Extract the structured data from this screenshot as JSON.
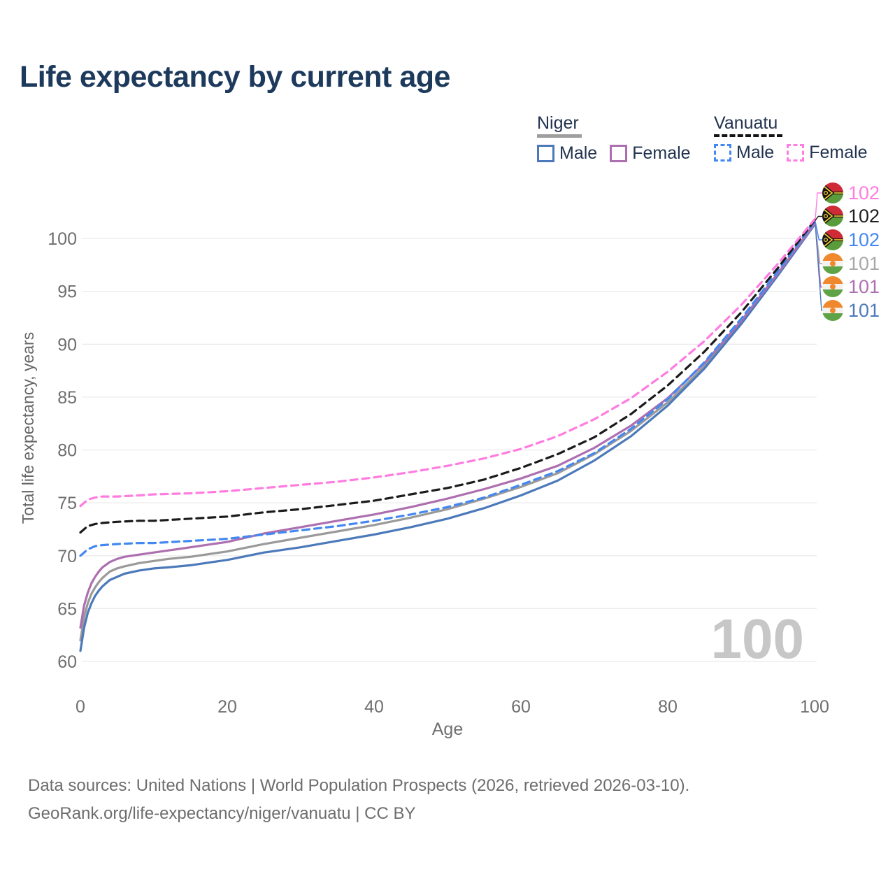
{
  "title": "Life expectancy by current age",
  "legend": {
    "groups": [
      {
        "name": "Niger",
        "line_style": "solid",
        "line_color": "#9e9e9e",
        "items": [
          {
            "label": "Male",
            "color": "#4c79ba",
            "dash": false
          },
          {
            "label": "Female",
            "color": "#ad6fb0",
            "dash": false
          }
        ]
      },
      {
        "name": "Vanuatu",
        "line_style": "dashed",
        "line_color": "#141414",
        "items": [
          {
            "label": "Male",
            "color": "#4388f0",
            "dash": true
          },
          {
            "label": "Female",
            "color": "#ff7ce0",
            "dash": true
          }
        ]
      }
    ]
  },
  "endpoints": [
    {
      "value": "102",
      "color": "#ff7ce0",
      "flag": "vanuatu",
      "series": "vu_f"
    },
    {
      "value": "102",
      "color": "#1f1f1f",
      "flag": "vanuatu",
      "series": "vu_all"
    },
    {
      "value": "102",
      "color": "#4388f0",
      "flag": "vanuatu",
      "series": "vu_m"
    },
    {
      "value": "101",
      "color": "#a8a8a8",
      "flag": "niger",
      "series": "ne_all"
    },
    {
      "value": "101",
      "color": "#ad6fb0",
      "flag": "niger",
      "series": "ne_f"
    },
    {
      "value": "101",
      "color": "#4c79ba",
      "flag": "niger",
      "series": "ne_m"
    }
  ],
  "watermark": "100",
  "footer": {
    "line1": "Data sources: United Nations | World Population Prospects (2026, retrieved 2026-03-10).",
    "line2": "GeoRank.org/life-expectancy/niger/vanuatu | CC BY"
  },
  "chart_data": {
    "type": "line",
    "title": "Life expectancy by current age",
    "xlabel": "Age",
    "ylabel": "Total life expectancy, years",
    "xlim": [
      0,
      100
    ],
    "ylim": [
      60,
      102
    ],
    "xticks": [
      0,
      20,
      40,
      60,
      80,
      100
    ],
    "yticks": [
      60,
      65,
      70,
      75,
      80,
      85,
      90,
      95,
      100
    ],
    "grid": "horizontal",
    "legend_position": "top-right",
    "series": [
      {
        "id": "ne_all",
        "name": "Niger (all)",
        "color": "#9a9a9a",
        "dash": false,
        "end_label": "101",
        "points": [
          [
            0,
            62.0
          ],
          [
            0.5,
            64.2
          ],
          [
            1,
            65.5
          ],
          [
            1.5,
            66.4
          ],
          [
            2,
            67.0
          ],
          [
            2.5,
            67.5
          ],
          [
            3,
            67.9
          ],
          [
            4,
            68.5
          ],
          [
            5,
            68.8
          ],
          [
            6,
            69.0
          ],
          [
            8,
            69.3
          ],
          [
            10,
            69.5
          ],
          [
            12,
            69.7
          ],
          [
            15,
            69.9
          ],
          [
            18,
            70.2
          ],
          [
            20,
            70.4
          ],
          [
            25,
            71.1
          ],
          [
            30,
            71.7
          ],
          [
            35,
            72.3
          ],
          [
            40,
            72.9
          ],
          [
            45,
            73.6
          ],
          [
            50,
            74.4
          ],
          [
            55,
            75.4
          ],
          [
            60,
            76.5
          ],
          [
            65,
            77.8
          ],
          [
            70,
            79.6
          ],
          [
            75,
            81.8
          ],
          [
            80,
            84.5
          ],
          [
            85,
            87.9
          ],
          [
            90,
            92.0
          ],
          [
            95,
            96.6
          ],
          [
            100,
            101.35
          ]
        ]
      },
      {
        "id": "ne_m",
        "name": "Niger Male",
        "color": "#4c79ba",
        "dash": false,
        "end_label": "101",
        "points": [
          [
            0,
            61.0
          ],
          [
            0.5,
            63.2
          ],
          [
            1,
            64.6
          ],
          [
            1.5,
            65.5
          ],
          [
            2,
            66.2
          ],
          [
            2.5,
            66.7
          ],
          [
            3,
            67.1
          ],
          [
            4,
            67.7
          ],
          [
            5,
            68.0
          ],
          [
            6,
            68.3
          ],
          [
            8,
            68.6
          ],
          [
            10,
            68.8
          ],
          [
            12,
            68.9
          ],
          [
            15,
            69.1
          ],
          [
            18,
            69.4
          ],
          [
            20,
            69.6
          ],
          [
            25,
            70.3
          ],
          [
            30,
            70.8
          ],
          [
            35,
            71.4
          ],
          [
            40,
            72.0
          ],
          [
            45,
            72.7
          ],
          [
            50,
            73.5
          ],
          [
            55,
            74.5
          ],
          [
            60,
            75.7
          ],
          [
            65,
            77.1
          ],
          [
            70,
            79.0
          ],
          [
            75,
            81.3
          ],
          [
            80,
            84.2
          ],
          [
            85,
            87.7
          ],
          [
            90,
            91.9
          ],
          [
            95,
            96.5
          ],
          [
            100,
            101.3
          ]
        ]
      },
      {
        "id": "ne_f",
        "name": "Niger Female",
        "color": "#ad6fb0",
        "dash": false,
        "end_label": "101",
        "points": [
          [
            0,
            63.2
          ],
          [
            0.5,
            65.3
          ],
          [
            1,
            66.5
          ],
          [
            1.5,
            67.4
          ],
          [
            2,
            68.0
          ],
          [
            2.5,
            68.5
          ],
          [
            3,
            68.9
          ],
          [
            4,
            69.4
          ],
          [
            5,
            69.7
          ],
          [
            6,
            69.9
          ],
          [
            8,
            70.1
          ],
          [
            10,
            70.3
          ],
          [
            12,
            70.5
          ],
          [
            15,
            70.8
          ],
          [
            18,
            71.1
          ],
          [
            20,
            71.3
          ],
          [
            25,
            72.1
          ],
          [
            30,
            72.7
          ],
          [
            35,
            73.3
          ],
          [
            40,
            73.9
          ],
          [
            45,
            74.6
          ],
          [
            50,
            75.4
          ],
          [
            55,
            76.3
          ],
          [
            60,
            77.3
          ],
          [
            65,
            78.5
          ],
          [
            70,
            80.2
          ],
          [
            75,
            82.3
          ],
          [
            80,
            84.9
          ],
          [
            85,
            88.2
          ],
          [
            90,
            92.2
          ],
          [
            95,
            96.7
          ],
          [
            100,
            101.4
          ]
        ]
      },
      {
        "id": "vu_m",
        "name": "Vanuatu Male",
        "color": "#4388f0",
        "dash": true,
        "end_label": "102",
        "points": [
          [
            0,
            70.0
          ],
          [
            1,
            70.6
          ],
          [
            2,
            70.9
          ],
          [
            3,
            71.0
          ],
          [
            5,
            71.1
          ],
          [
            8,
            71.2
          ],
          [
            10,
            71.2
          ],
          [
            15,
            71.4
          ],
          [
            20,
            71.6
          ],
          [
            25,
            72.0
          ],
          [
            30,
            72.4
          ],
          [
            35,
            72.8
          ],
          [
            40,
            73.3
          ],
          [
            45,
            73.9
          ],
          [
            50,
            74.6
          ],
          [
            55,
            75.5
          ],
          [
            60,
            76.7
          ],
          [
            65,
            78.0
          ],
          [
            70,
            79.7
          ],
          [
            75,
            82.0
          ],
          [
            80,
            84.8
          ],
          [
            85,
            88.3
          ],
          [
            90,
            92.4
          ],
          [
            95,
            96.9
          ],
          [
            100,
            101.6
          ]
        ]
      },
      {
        "id": "vu_all",
        "name": "Vanuatu (all)",
        "color": "#1b1b1b",
        "dash": true,
        "end_label": "102",
        "points": [
          [
            0,
            72.2
          ],
          [
            1,
            72.8
          ],
          [
            2,
            73.0
          ],
          [
            3,
            73.1
          ],
          [
            5,
            73.2
          ],
          [
            8,
            73.3
          ],
          [
            10,
            73.3
          ],
          [
            15,
            73.5
          ],
          [
            20,
            73.7
          ],
          [
            25,
            74.1
          ],
          [
            30,
            74.4
          ],
          [
            35,
            74.8
          ],
          [
            40,
            75.2
          ],
          [
            45,
            75.8
          ],
          [
            50,
            76.4
          ],
          [
            55,
            77.2
          ],
          [
            60,
            78.3
          ],
          [
            65,
            79.6
          ],
          [
            70,
            81.2
          ],
          [
            75,
            83.4
          ],
          [
            80,
            86.1
          ],
          [
            85,
            89.3
          ],
          [
            90,
            93.0
          ],
          [
            95,
            97.2
          ],
          [
            100,
            101.7
          ]
        ]
      },
      {
        "id": "vu_f",
        "name": "Vanuatu Female",
        "color": "#ff7ce0",
        "dash": true,
        "end_label": "102",
        "points": [
          [
            0,
            74.7
          ],
          [
            1,
            75.3
          ],
          [
            2,
            75.5
          ],
          [
            3,
            75.6
          ],
          [
            5,
            75.6
          ],
          [
            8,
            75.7
          ],
          [
            10,
            75.8
          ],
          [
            15,
            75.9
          ],
          [
            20,
            76.1
          ],
          [
            25,
            76.4
          ],
          [
            30,
            76.7
          ],
          [
            35,
            77.0
          ],
          [
            40,
            77.4
          ],
          [
            45,
            77.9
          ],
          [
            50,
            78.5
          ],
          [
            55,
            79.2
          ],
          [
            60,
            80.1
          ],
          [
            65,
            81.3
          ],
          [
            70,
            82.9
          ],
          [
            75,
            84.9
          ],
          [
            80,
            87.4
          ],
          [
            85,
            90.3
          ],
          [
            90,
            93.7
          ],
          [
            95,
            97.6
          ],
          [
            100,
            101.8
          ]
        ]
      }
    ]
  }
}
